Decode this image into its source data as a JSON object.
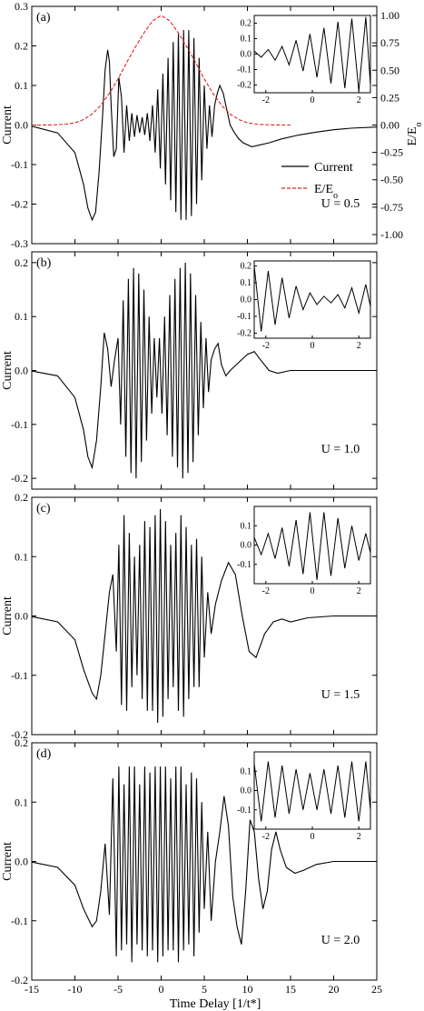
{
  "x_axis_label": "Time Delay [1/t*]",
  "x_ticks": [
    "-15",
    "-10",
    "-5",
    "0",
    "5",
    "10",
    "15",
    "20",
    "25"
  ],
  "colors": {
    "current": "#000000",
    "field": "#e02020"
  },
  "chart_data": [
    {
      "type": "line",
      "panel_label": "(a)",
      "annotation": "U = 0.5",
      "ylabel": "Current",
      "ylabel_right": "E/E",
      "ylabel_right_sub": "o",
      "xlim": [
        -15,
        25
      ],
      "ylim": [
        -0.3,
        0.3
      ],
      "y_ticks": [
        "-0.3",
        "-0.2",
        "-0.1",
        "0.0",
        "0.1",
        "0.2",
        "0.3"
      ],
      "y2lim": [
        -1.083,
        1.083
      ],
      "y2_ticks": [
        "-1.00",
        "-0.75",
        "-0.50",
        "-0.25",
        "0.00",
        "0.25",
        "0.50",
        "0.75",
        "1.00"
      ],
      "legend": {
        "placement": "right-middle",
        "current_label": "Current",
        "field_label": "E/E",
        "field_label_sub": "o"
      },
      "series": [
        {
          "name": "Current",
          "x": [
            -15,
            -12,
            -10,
            -9,
            -8.5,
            -8,
            -7.6,
            -7.2,
            -6.8,
            -6.5,
            -6.2,
            -6.0,
            -5.8,
            -5.5,
            -5.2,
            -4.9,
            -4.6,
            -4.3,
            -4.0,
            -3.7,
            -3.4,
            -3.1,
            -2.8,
            -2.5,
            -2.2,
            -1.9,
            -1.6,
            -1.3,
            -1.0,
            -0.7,
            -0.4,
            -0.1,
            0.2,
            0.5,
            0.8,
            1.1,
            1.4,
            1.7,
            2.0,
            2.3,
            2.6,
            2.9,
            3.2,
            3.5,
            3.8,
            4.1,
            4.4,
            4.7,
            5.0,
            5.3,
            5.6,
            5.9,
            6.2,
            6.5,
            6.8,
            7.2,
            7.6,
            8.0,
            8.5,
            9.0,
            9.5,
            10.5,
            11.5,
            12.5,
            14,
            16,
            18,
            20,
            22,
            25
          ],
          "y": [
            -0.003,
            -0.02,
            -0.07,
            -0.15,
            -0.21,
            -0.24,
            -0.22,
            -0.12,
            0.02,
            0.14,
            0.19,
            0.16,
            0.05,
            -0.08,
            -0.06,
            0.12,
            0.07,
            -0.07,
            0.05,
            -0.04,
            0.03,
            -0.03,
            0.025,
            -0.02,
            0.02,
            -0.025,
            0.03,
            -0.04,
            0.05,
            -0.07,
            0.09,
            -0.11,
            0.13,
            -0.15,
            0.17,
            -0.19,
            0.21,
            -0.22,
            0.23,
            -0.24,
            0.24,
            -0.24,
            0.24,
            -0.23,
            0.22,
            -0.2,
            0.17,
            -0.14,
            0.1,
            -0.06,
            0.05,
            -0.03,
            0.05,
            0.08,
            0.1,
            0.08,
            0.04,
            0.0,
            -0.02,
            -0.035,
            -0.045,
            -0.055,
            -0.05,
            -0.045,
            -0.035,
            -0.025,
            -0.018,
            -0.012,
            -0.008,
            -0.005
          ]
        },
        {
          "name": "E/E",
          "x": [
            -15,
            -14,
            -13,
            -12,
            -11,
            -10,
            -9,
            -8,
            -7,
            -6,
            -5,
            -4,
            -3,
            -2,
            -1,
            0,
            1,
            2,
            3,
            4,
            5,
            6,
            7,
            8,
            9,
            10,
            11,
            12,
            13,
            14,
            15
          ],
          "y": [
            0.0,
            0.0,
            0.001,
            0.003,
            0.008,
            0.02,
            0.05,
            0.1,
            0.18,
            0.29,
            0.42,
            0.57,
            0.71,
            0.84,
            0.95,
            1.0,
            0.95,
            0.84,
            0.71,
            0.57,
            0.42,
            0.29,
            0.18,
            0.1,
            0.05,
            0.02,
            0.008,
            0.003,
            0.001,
            0.0,
            0.0
          ]
        }
      ],
      "inset": {
        "xlim": [
          -2.5,
          2.5
        ],
        "ylim": [
          -0.25,
          0.25
        ],
        "x_ticks": [
          "-2",
          "0",
          "2"
        ],
        "y_ticks": [
          "-0.2",
          "-0.1",
          "0.0",
          "0.1",
          "0.2"
        ],
        "x": [
          -2.5,
          -2.2,
          -1.9,
          -1.6,
          -1.3,
          -1.0,
          -0.7,
          -0.4,
          -0.1,
          0.2,
          0.5,
          0.8,
          1.1,
          1.4,
          1.7,
          2.0,
          2.3,
          2.5
        ],
        "y": [
          0.02,
          -0.02,
          0.03,
          -0.04,
          0.05,
          -0.07,
          0.09,
          -0.11,
          0.13,
          -0.15,
          0.17,
          -0.19,
          0.21,
          -0.22,
          0.23,
          -0.24,
          0.24,
          -0.2
        ]
      }
    },
    {
      "type": "line",
      "panel_label": "(b)",
      "annotation": "U = 1.0",
      "ylabel": "Current",
      "xlim": [
        -15,
        25
      ],
      "ylim": [
        -0.22,
        0.22
      ],
      "y_ticks": [
        "-0.2",
        "-0.1",
        "0.0",
        "0.1",
        "0.2"
      ],
      "series": [
        {
          "name": "Current",
          "x": [
            -15,
            -12,
            -10,
            -9,
            -8.5,
            -8,
            -7.5,
            -7.0,
            -6.6,
            -6.2,
            -5.8,
            -5.4,
            -5.0,
            -4.7,
            -4.4,
            -4.1,
            -3.8,
            -3.5,
            -3.2,
            -2.9,
            -2.6,
            -2.3,
            -2.0,
            -1.7,
            -1.4,
            -1.1,
            -0.8,
            -0.5,
            -0.2,
            0.1,
            0.4,
            0.7,
            1.0,
            1.3,
            1.6,
            1.9,
            2.2,
            2.5,
            2.8,
            3.1,
            3.4,
            3.7,
            4.0,
            4.3,
            4.6,
            4.9,
            5.2,
            5.5,
            5.8,
            6.2,
            6.6,
            7.0,
            7.5,
            8.0,
            9.0,
            10.0,
            10.8,
            11.5,
            12.5,
            13.5,
            15,
            18,
            25
          ],
          "y": [
            -0.001,
            -0.01,
            -0.05,
            -0.11,
            -0.16,
            -0.18,
            -0.13,
            -0.03,
            0.07,
            0.04,
            -0.03,
            0.02,
            0.06,
            -0.1,
            0.13,
            -0.16,
            0.17,
            -0.19,
            0.19,
            -0.2,
            0.18,
            -0.17,
            0.15,
            -0.13,
            0.1,
            -0.08,
            0.06,
            -0.05,
            0.06,
            -0.08,
            0.1,
            -0.12,
            0.14,
            -0.16,
            0.17,
            -0.18,
            0.19,
            -0.2,
            0.2,
            -0.19,
            0.18,
            -0.17,
            0.14,
            -0.12,
            0.09,
            -0.07,
            0.06,
            -0.04,
            0.02,
            0.04,
            0.05,
            0.01,
            -0.01,
            0.0,
            0.015,
            0.03,
            0.035,
            0.02,
            0.0,
            -0.005,
            0.0,
            0.0,
            0.0
          ]
        }
      ],
      "inset": {
        "xlim": [
          -2.5,
          2.5
        ],
        "ylim": [
          -0.23,
          0.23
        ],
        "x_ticks": [
          "-2",
          "0",
          "2"
        ],
        "y_ticks": [
          "-0.2",
          "-0.1",
          "0.0",
          "0.1",
          "0.2"
        ],
        "x": [
          -2.5,
          -2.2,
          -1.9,
          -1.6,
          -1.3,
          -1.0,
          -0.7,
          -0.4,
          -0.1,
          0.2,
          0.5,
          0.8,
          1.1,
          1.4,
          1.7,
          2.0,
          2.3,
          2.5
        ],
        "y": [
          0.2,
          -0.19,
          0.17,
          -0.15,
          0.13,
          -0.11,
          0.08,
          -0.06,
          0.04,
          -0.03,
          0.02,
          -0.02,
          0.03,
          -0.05,
          0.07,
          -0.08,
          0.09,
          -0.04
        ]
      }
    },
    {
      "type": "line",
      "panel_label": "(c)",
      "annotation": "U = 1.5",
      "ylabel": "Current",
      "xlim": [
        -15,
        25
      ],
      "ylim": [
        -0.2,
        0.2
      ],
      "y_ticks": [
        "-0.2",
        "-0.1",
        "0.0",
        "0.1",
        "0.2"
      ],
      "series": [
        {
          "name": "Current",
          "x": [
            -15,
            -12,
            -10,
            -9,
            -8,
            -7.5,
            -7.0,
            -6.5,
            -6.0,
            -5.6,
            -5.2,
            -4.9,
            -4.6,
            -4.3,
            -4.0,
            -3.7,
            -3.4,
            -3.1,
            -2.8,
            -2.5,
            -2.2,
            -1.9,
            -1.6,
            -1.3,
            -1.0,
            -0.7,
            -0.4,
            -0.1,
            0.2,
            0.5,
            0.8,
            1.1,
            1.4,
            1.7,
            2.0,
            2.3,
            2.6,
            2.9,
            3.2,
            3.5,
            3.8,
            4.1,
            4.4,
            4.7,
            5.0,
            5.4,
            5.8,
            6.3,
            7.0,
            7.8,
            8.6,
            9.4,
            10.2,
            11.0,
            12.0,
            13.0,
            14.0,
            15.0,
            17.0,
            20.0,
            25.0
          ],
          "y": [
            -0.001,
            -0.01,
            -0.04,
            -0.09,
            -0.13,
            -0.14,
            -0.1,
            -0.03,
            0.04,
            0.07,
            -0.06,
            0.12,
            -0.15,
            0.17,
            -0.16,
            0.14,
            -0.12,
            0.1,
            -0.1,
            0.12,
            -0.14,
            0.16,
            -0.16,
            0.15,
            -0.16,
            0.17,
            -0.18,
            0.18,
            -0.17,
            0.16,
            -0.14,
            0.12,
            -0.12,
            0.14,
            -0.16,
            0.17,
            -0.17,
            0.15,
            -0.14,
            0.12,
            -0.12,
            0.13,
            -0.12,
            0.1,
            -0.07,
            0.04,
            -0.03,
            0.02,
            0.06,
            0.09,
            0.07,
            0.0,
            -0.06,
            -0.07,
            -0.03,
            -0.01,
            -0.005,
            -0.01,
            -0.003,
            0.0,
            0.0
          ]
        }
      ],
      "inset": {
        "xlim": [
          -2.5,
          2.5
        ],
        "ylim": [
          -0.2,
          0.2
        ],
        "x_ticks": [
          "-2",
          "0",
          "2"
        ],
        "y_ticks": [
          "-0.1",
          "0.0",
          "0.1"
        ],
        "x": [
          -2.5,
          -2.2,
          -1.9,
          -1.6,
          -1.3,
          -1.0,
          -0.7,
          -0.4,
          -0.1,
          0.2,
          0.5,
          0.8,
          1.1,
          1.4,
          1.7,
          2.0,
          2.3,
          2.5
        ],
        "y": [
          0.04,
          -0.05,
          0.06,
          -0.07,
          0.09,
          -0.11,
          0.13,
          -0.15,
          0.17,
          -0.18,
          0.17,
          -0.16,
          0.14,
          -0.12,
          0.1,
          -0.08,
          0.06,
          -0.04
        ]
      }
    },
    {
      "type": "line",
      "panel_label": "(d)",
      "annotation": "U = 2.0",
      "ylabel": "Current",
      "xlim": [
        -15,
        25
      ],
      "ylim": [
        -0.2,
        0.2
      ],
      "y_ticks": [
        "-0.2",
        "-0.1",
        "0.0",
        "0.1",
        "0.2"
      ],
      "series": [
        {
          "name": "Current",
          "x": [
            -15,
            -12,
            -10,
            -9,
            -8,
            -7.5,
            -7.0,
            -6.5,
            -6.0,
            -5.6,
            -5.2,
            -4.9,
            -4.6,
            -4.3,
            -4.0,
            -3.7,
            -3.4,
            -3.1,
            -2.8,
            -2.5,
            -2.2,
            -1.9,
            -1.6,
            -1.3,
            -1.0,
            -0.7,
            -0.4,
            -0.1,
            0.2,
            0.5,
            0.8,
            1.1,
            1.4,
            1.7,
            2.0,
            2.3,
            2.6,
            2.9,
            3.2,
            3.5,
            3.8,
            4.1,
            4.4,
            4.7,
            5.0,
            5.4,
            5.8,
            6.3,
            6.8,
            7.3,
            7.8,
            8.3,
            8.8,
            9.3,
            9.8,
            10.3,
            10.8,
            11.3,
            11.8,
            12.3,
            12.8,
            13.3,
            13.8,
            14.5,
            15.5,
            16.5,
            18,
            20,
            22,
            25
          ],
          "y": [
            -0.001,
            -0.01,
            -0.04,
            -0.08,
            -0.11,
            -0.1,
            -0.05,
            0.03,
            -0.09,
            0.14,
            -0.16,
            0.16,
            -0.15,
            0.13,
            -0.14,
            0.16,
            -0.17,
            0.16,
            -0.14,
            0.13,
            -0.15,
            0.16,
            -0.16,
            0.15,
            -0.15,
            0.16,
            -0.17,
            0.16,
            -0.16,
            0.16,
            -0.15,
            0.14,
            -0.15,
            0.16,
            -0.17,
            0.16,
            -0.15,
            0.13,
            -0.14,
            0.15,
            -0.16,
            0.14,
            -0.12,
            0.1,
            -0.08,
            0.05,
            -0.1,
            0.0,
            0.05,
            0.11,
            0.06,
            -0.06,
            -0.11,
            -0.14,
            -0.05,
            0.07,
            0.05,
            -0.03,
            -0.08,
            -0.05,
            0.02,
            0.05,
            0.02,
            -0.01,
            -0.02,
            -0.015,
            -0.005,
            0.0,
            0.0,
            0.0
          ]
        }
      ],
      "inset": {
        "xlim": [
          -2.5,
          2.5
        ],
        "ylim": [
          -0.2,
          0.2
        ],
        "x_ticks": [
          "-2",
          "0",
          "2"
        ],
        "y_ticks": [
          "-0.1",
          "0.0",
          "0.1"
        ],
        "x": [
          -2.5,
          -2.2,
          -1.9,
          -1.6,
          -1.3,
          -1.0,
          -0.7,
          -0.4,
          -0.1,
          0.2,
          0.5,
          0.8,
          1.1,
          1.4,
          1.7,
          2.0,
          2.3,
          2.5
        ],
        "y": [
          0.14,
          -0.16,
          0.15,
          -0.14,
          0.13,
          -0.12,
          0.11,
          -0.1,
          0.09,
          -0.1,
          0.11,
          -0.12,
          0.13,
          -0.14,
          0.15,
          -0.16,
          0.15,
          -0.1
        ]
      }
    }
  ]
}
